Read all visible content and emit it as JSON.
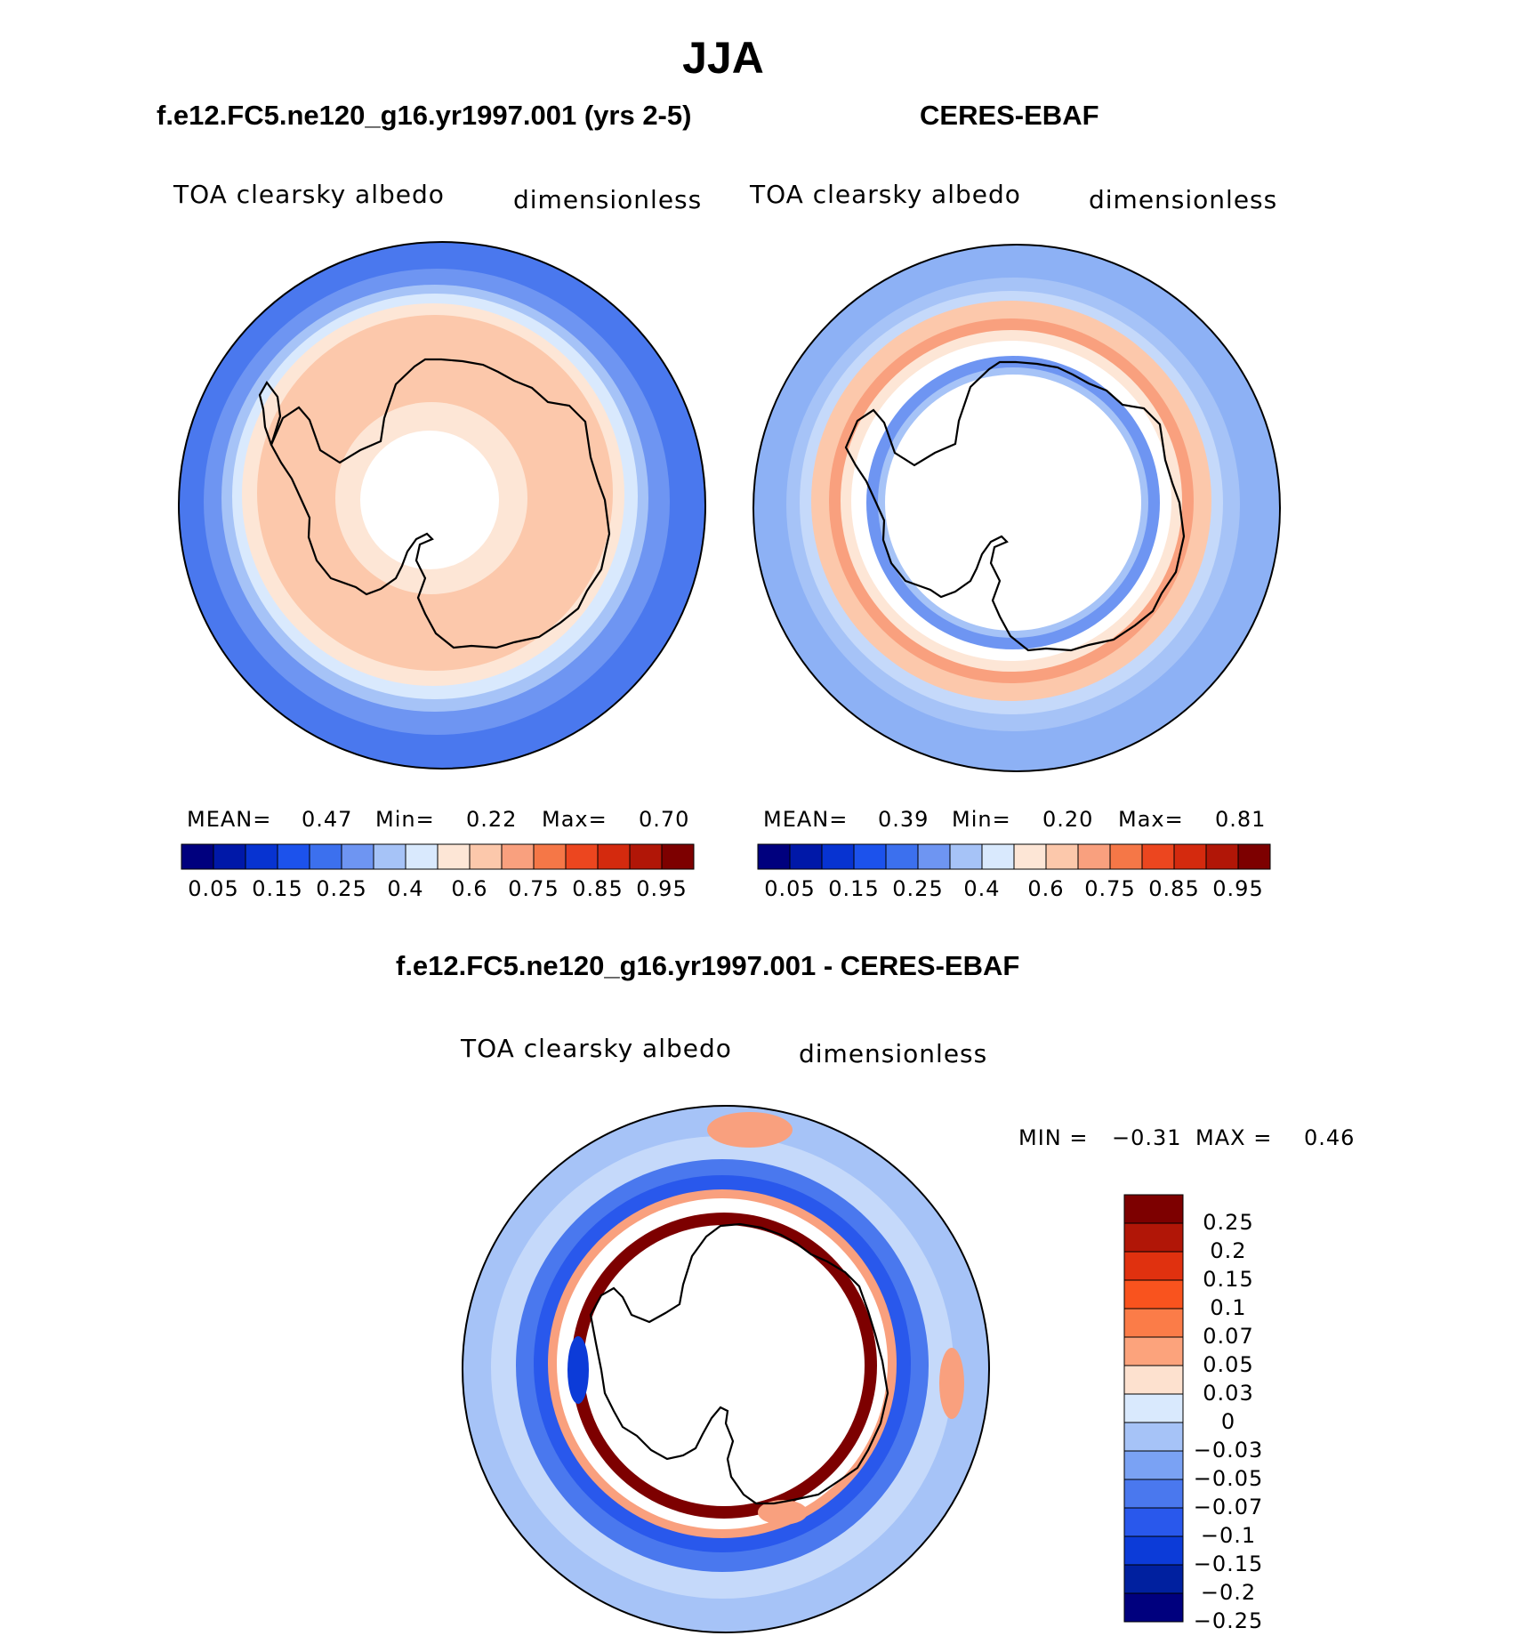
{
  "title": "JJA",
  "panels": [
    {
      "id": "model",
      "title": "f.e12.FC5.ne120_g16.yr1997.001 (yrs 2-5)",
      "variable": "TOA clearsky albedo",
      "units": "dimensionless",
      "stats": {
        "mean_label": "MEAN=",
        "mean": "0.47",
        "min_label": "Min=",
        "min": "0.22",
        "max_label": "Max=",
        "max": "0.70"
      }
    },
    {
      "id": "obs",
      "title": "CERES-EBAF",
      "variable": "TOA clearsky albedo",
      "units": "dimensionless",
      "stats": {
        "mean_label": "MEAN=",
        "mean": "0.39",
        "min_label": "Min=",
        "min": "0.20",
        "max_label": "Max=",
        "max": "0.81"
      }
    },
    {
      "id": "diff",
      "title": "f.e12.FC5.ne120_g16.yr1997.001 - CERES-EBAF",
      "variable": "TOA clearsky albedo",
      "units": "dimensionless",
      "stats": {
        "min_label": "MIN =",
        "min": "−0.31",
        "max_label": "MAX =",
        "max": "0.46"
      }
    }
  ],
  "colorbar_abs": {
    "colors": [
      "#00007e",
      "#0018a8",
      "#0733d1",
      "#1c52ec",
      "#3c70ee",
      "#6e95f2",
      "#a6c3f7",
      "#d9e9fd",
      "#fde6d6",
      "#fcc8ab",
      "#f9a07e",
      "#f57747",
      "#ec461f",
      "#d42a0e",
      "#b11607",
      "#7d0000"
    ],
    "tick_labels": [
      "0.05",
      "0.15",
      "0.25",
      "0.4",
      "0.6",
      "0.75",
      "0.85",
      "0.95"
    ]
  },
  "colorbar_diff": {
    "colors": [
      "#7d0000",
      "#b11607",
      "#e0310f",
      "#f9531e",
      "#fb7c48",
      "#fca37c",
      "#fde1cf",
      "#d9e9fd",
      "#a6c3f7",
      "#7aa2f4",
      "#4a78ee",
      "#2958ec",
      "#0c3bd8",
      "#00209f",
      "#00007e"
    ],
    "tick_labels": [
      "0.25",
      "0.2",
      "0.15",
      "0.1",
      "0.07",
      "0.05",
      "0.03",
      "0",
      "−0.03",
      "−0.05",
      "−0.07",
      "−0.1",
      "−0.15",
      "−0.2",
      "−0.25"
    ]
  },
  "map_colors": {
    "model": [
      "#4a78ee",
      "#6e95f2",
      "#a6c3f7",
      "#d9e9fd",
      "#fde6d6",
      "#fcc8ab",
      "#ffffff"
    ],
    "obs": [
      "#8db1f5",
      "#a6c3f7",
      "#c5d9fa",
      "#fcc8ab",
      "#f9a07e",
      "#fde6d6",
      "#ffffff",
      "#6e95f2",
      "#a6c3f7",
      "#ffffff"
    ],
    "diff": [
      "#a6c3f7",
      "#c5d9fa",
      "#4a78ee",
      "#2958ec",
      "#f9a07e",
      "#ffffff",
      "#7d0000",
      "#ffffff"
    ]
  }
}
